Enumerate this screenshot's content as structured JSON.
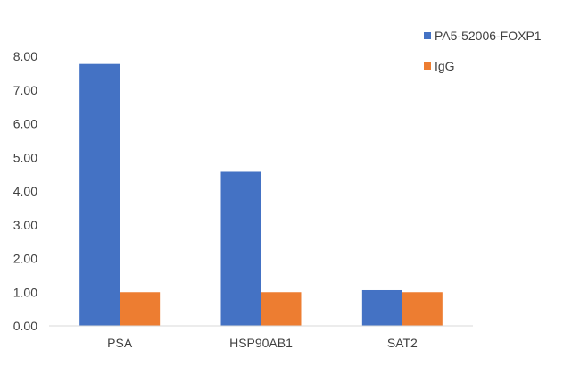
{
  "chart_data": {
    "type": "bar",
    "categories": [
      "PSA",
      "HSP90AB1",
      "SAT2"
    ],
    "series": [
      {
        "name": "PA5-52006-FOXP1",
        "color": "#4472C4",
        "values": [
          7.77,
          4.57,
          1.06
        ]
      },
      {
        "name": "IgG",
        "color": "#ED7D31",
        "values": [
          1.0,
          1.0,
          1.0
        ]
      }
    ],
    "ylim": [
      0,
      8
    ],
    "yticks": [
      "0.00",
      "1.00",
      "2.00",
      "3.00",
      "4.00",
      "5.00",
      "6.00",
      "7.00",
      "8.00"
    ],
    "grid": false,
    "legend_position": "top-right"
  }
}
